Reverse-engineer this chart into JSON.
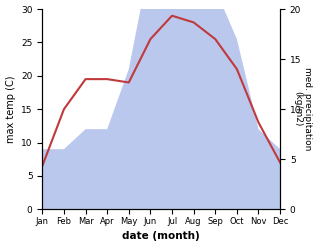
{
  "months": [
    "Jan",
    "Feb",
    "Mar",
    "Apr",
    "May",
    "Jun",
    "Jul",
    "Aug",
    "Sep",
    "Oct",
    "Nov",
    "Dec"
  ],
  "temperature": [
    6.5,
    15.0,
    19.5,
    19.5,
    19.0,
    25.5,
    29.0,
    28.0,
    25.5,
    21.0,
    13.0,
    7.0
  ],
  "precipitation": [
    6.0,
    6.0,
    8.0,
    8.0,
    14.0,
    25.0,
    25.0,
    28.0,
    22.0,
    17.0,
    8.0,
    6.0
  ],
  "temp_color": "#c0393b",
  "precip_color": "#bbc8ee",
  "ylabel_left": "max temp (C)",
  "ylabel_right": "med. precipitation\n(kg/m2)",
  "xlabel": "date (month)",
  "ylim_left": [
    0,
    30
  ],
  "ylim_right": [
    0,
    20
  ],
  "left_ticks": [
    0,
    5,
    10,
    15,
    20,
    25,
    30
  ],
  "right_ticks": [
    0,
    5,
    10,
    15,
    20
  ],
  "background_color": "#ffffff"
}
